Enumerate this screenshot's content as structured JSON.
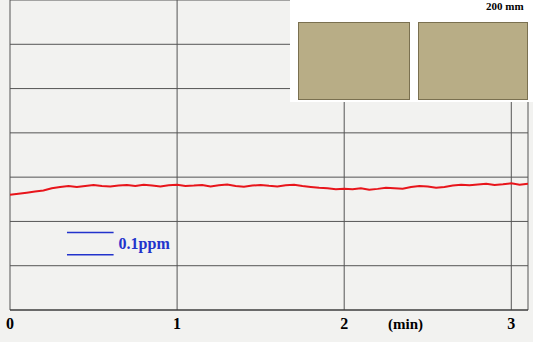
{
  "chart_data": {
    "type": "line",
    "xlabel": "(min)",
    "x": [
      0,
      0.05,
      0.1,
      0.15,
      0.2,
      0.25,
      0.3,
      0.35,
      0.4,
      0.45,
      0.5,
      0.55,
      0.6,
      0.65,
      0.7,
      0.75,
      0.8,
      0.85,
      0.9,
      0.95,
      1.0,
      1.05,
      1.1,
      1.15,
      1.2,
      1.25,
      1.3,
      1.35,
      1.4,
      1.45,
      1.5,
      1.55,
      1.6,
      1.65,
      1.7,
      1.75,
      1.8,
      1.85,
      1.9,
      1.95,
      2.0,
      2.05,
      2.1,
      2.15,
      2.2,
      2.25,
      2.3,
      2.35,
      2.4,
      2.45,
      2.5,
      2.55,
      2.6,
      2.65,
      2.7,
      2.75,
      2.8,
      2.85,
      2.9,
      2.95,
      3.0,
      3.05,
      3.1
    ],
    "values": [
      0.52,
      0.525,
      0.53,
      0.535,
      0.54,
      0.55,
      0.555,
      0.56,
      0.555,
      0.56,
      0.565,
      0.56,
      0.558,
      0.562,
      0.565,
      0.56,
      0.566,
      0.562,
      0.558,
      0.563,
      0.566,
      0.56,
      0.562,
      0.565,
      0.558,
      0.563,
      0.567,
      0.56,
      0.557,
      0.562,
      0.565,
      0.561,
      0.558,
      0.563,
      0.566,
      0.56,
      0.556,
      0.552,
      0.55,
      0.545,
      0.548,
      0.545,
      0.55,
      0.543,
      0.547,
      0.552,
      0.55,
      0.548,
      0.555,
      0.56,
      0.558,
      0.552,
      0.556,
      0.562,
      0.566,
      0.563,
      0.567,
      0.57,
      0.565,
      0.568,
      0.572,
      0.566,
      0.57
    ],
    "color": "#e8151b",
    "xlim": [
      0,
      3.1
    ],
    "xticks": [
      0,
      1,
      2,
      3
    ],
    "ylim": [
      0,
      1.4
    ],
    "yticks": [
      0,
      0.1,
      0.2,
      0.3,
      0.4,
      0.5,
      0.6,
      0.7,
      0.8,
      0.9,
      1.0,
      1.1,
      1.2,
      1.3,
      1.4
    ],
    "grid": true,
    "tick_labels": "x",
    "annotation": {
      "text": "0.1ppm",
      "from": 0.25,
      "to": 0.35,
      "color": "#2233cc"
    },
    "inset_scale_bar": "200 mm"
  }
}
